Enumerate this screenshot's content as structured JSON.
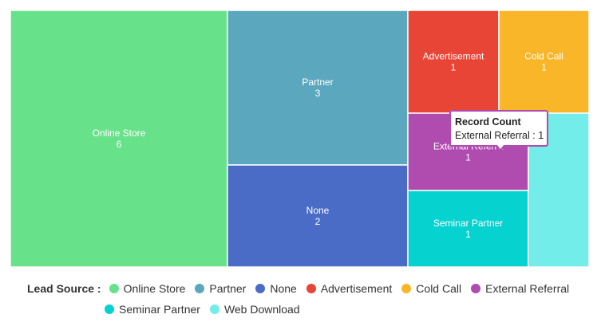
{
  "chart_data": {
    "type": "treemap",
    "value_label": "Record Count",
    "items": [
      {
        "name": "Online Store",
        "value": 6,
        "color": "#67e18a"
      },
      {
        "name": "Partner",
        "value": 3,
        "color": "#5ba7be"
      },
      {
        "name": "None",
        "value": 2,
        "color": "#4a6cc6"
      },
      {
        "name": "Advertisement",
        "value": 1,
        "color": "#e84536"
      },
      {
        "name": "Cold Call",
        "value": 1,
        "color": "#f8b628"
      },
      {
        "name": "External Referral",
        "value": 1,
        "color": "#b04cb0",
        "display_label": "External Referra"
      },
      {
        "name": "Seminar Partner",
        "value": 1,
        "color": "#06d2d0"
      },
      {
        "name": "Web Download",
        "value": 1,
        "color": "#72ede9"
      }
    ]
  },
  "tooltip": {
    "title": "Record Count",
    "text": "External Referral : 1"
  },
  "legend": {
    "title": "Lead Source :",
    "items": [
      {
        "label": "Online Store",
        "color": "#67e18a"
      },
      {
        "label": "Partner",
        "color": "#5ba7be"
      },
      {
        "label": "None",
        "color": "#4a6cc6"
      },
      {
        "label": "Advertisement",
        "color": "#e84536"
      },
      {
        "label": "Cold Call",
        "color": "#f8b628"
      },
      {
        "label": "External Referral",
        "color": "#b04cb0"
      },
      {
        "label": "Seminar Partner",
        "color": "#06d2d0"
      },
      {
        "label": "Web Download",
        "color": "#72ede9"
      }
    ]
  }
}
